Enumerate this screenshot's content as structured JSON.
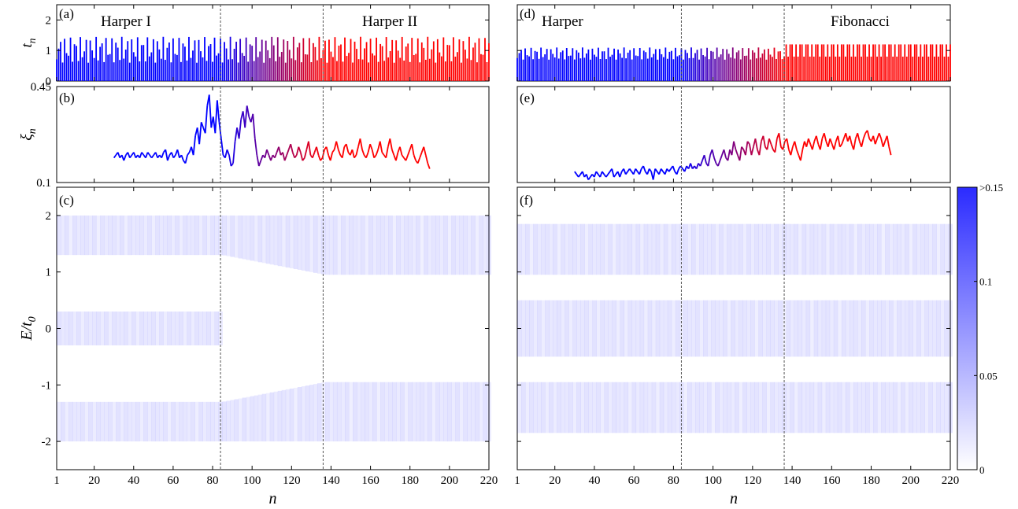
{
  "chart_data": [
    {
      "type": "bar",
      "panel": "(a)",
      "ylabel": "t_n",
      "ylim": [
        0,
        2.5
      ],
      "yticks": [
        0,
        1,
        2
      ],
      "annotations": [
        "Harper I",
        "Harper II"
      ],
      "transition_lines": [
        84,
        136
      ],
      "xlim": [
        1,
        220
      ],
      "series": [
        {
          "name": "",
          "color": "#0000ff",
          "description_values": "alternating hopping amplitudes between ~0.6 and ~1.45",
          "values_min": 0.6,
          "values_max": 1.45
        },
        {
          "name": "",
          "color": "#ff0000",
          "values_min": 0.6,
          "values_max": 1.45
        }
      ]
    },
    {
      "type": "line",
      "panel": "(b)",
      "ylabel": "ξ_n",
      "ylim": [
        0.1,
        0.45
      ],
      "yticks": [
        0.1,
        0.45
      ],
      "transition_lines": [
        84,
        136
      ],
      "xlim": [
        1,
        220
      ],
      "series": [
        {
          "name": "",
          "x_range": [
            30,
            190
          ],
          "values": [
            0.19,
            0.2,
            0.21,
            0.19,
            0.2,
            0.18,
            0.2,
            0.21,
            0.19,
            0.2,
            0.21,
            0.19,
            0.2,
            0.19,
            0.21,
            0.2,
            0.19,
            0.21,
            0.2,
            0.19,
            0.2,
            0.21,
            0.19,
            0.2,
            0.19,
            0.21,
            0.22,
            0.18,
            0.2,
            0.21,
            0.19,
            0.2,
            0.22,
            0.19,
            0.2,
            0.18,
            0.17,
            0.2,
            0.21,
            0.23,
            0.2,
            0.27,
            0.3,
            0.24,
            0.32,
            0.3,
            0.28,
            0.38,
            0.42,
            0.3,
            0.34,
            0.28,
            0.4,
            0.32,
            0.26,
            0.2,
            0.19,
            0.22,
            0.2,
            0.16,
            0.17,
            0.25,
            0.3,
            0.26,
            0.33,
            0.36,
            0.3,
            0.38,
            0.34,
            0.32,
            0.35,
            0.26,
            0.2,
            0.16,
            0.18,
            0.2,
            0.19,
            0.22,
            0.2,
            0.18,
            0.2,
            0.19,
            0.21,
            0.23,
            0.2,
            0.21,
            0.18,
            0.2,
            0.22,
            0.24,
            0.21,
            0.19,
            0.2,
            0.23,
            0.21,
            0.18,
            0.19,
            0.22,
            0.25,
            0.2,
            0.19,
            0.21,
            0.23,
            0.2,
            0.18,
            0.19,
            0.22,
            0.23,
            0.2,
            0.18,
            0.21,
            0.22,
            0.25,
            0.22,
            0.2,
            0.19,
            0.23,
            0.24,
            0.21,
            0.2,
            0.22,
            0.19,
            0.2,
            0.23,
            0.26,
            0.22,
            0.2,
            0.19,
            0.21,
            0.24,
            0.22,
            0.19,
            0.2,
            0.22,
            0.25,
            0.21,
            0.2,
            0.19,
            0.23,
            0.26,
            0.22,
            0.2,
            0.18,
            0.21,
            0.23,
            0.2,
            0.19,
            0.18,
            0.2,
            0.22,
            0.24,
            0.2,
            0.18,
            0.17,
            0.19,
            0.21,
            0.23,
            0.2,
            0.17,
            0.15
          ]
        }
      ]
    },
    {
      "type": "heatmap",
      "panel": "(c)",
      "xlabel": "n",
      "ylabel": "E/t_0",
      "ylim": [
        -2.5,
        2.5
      ],
      "yticks": [
        -2,
        -1,
        0,
        1,
        2
      ],
      "xticks": [
        1,
        20,
        40,
        60,
        80,
        100,
        120,
        140,
        160,
        180,
        200,
        220
      ],
      "transition_lines": [
        84,
        136
      ],
      "xlim": [
        1,
        220
      ],
      "bands_left": [
        [
          1.3,
          2.0
        ],
        [
          -0.3,
          0.3
        ],
        [
          -2.0,
          -1.3
        ]
      ],
      "bands_right": [
        [
          0.95,
          2.0
        ],
        [
          -2.0,
          -0.95
        ]
      ]
    },
    {
      "type": "bar",
      "panel": "(d)",
      "ylim": [
        0,
        2.5
      ],
      "annotations": [
        "Harper",
        "Fibonacci"
      ],
      "transition_lines": [
        84,
        136
      ],
      "xlim": [
        1,
        220
      ],
      "series": [
        {
          "name": "",
          "color": "#0000ff",
          "values_min": 0.7,
          "values_max": 1.1
        },
        {
          "name": "",
          "color": "#ff0000",
          "values": [
            0.8,
            1.2
          ]
        }
      ]
    },
    {
      "type": "line",
      "panel": "(e)",
      "ylim": [
        0.1,
        0.45
      ],
      "transition_lines": [
        84,
        136
      ],
      "xlim": [
        1,
        220
      ],
      "series": [
        {
          "name": "",
          "x_range": [
            30,
            190
          ],
          "values": [
            0.14,
            0.13,
            0.12,
            0.13,
            0.14,
            0.12,
            0.13,
            0.11,
            0.12,
            0.13,
            0.12,
            0.14,
            0.13,
            0.12,
            0.14,
            0.13,
            0.12,
            0.13,
            0.14,
            0.15,
            0.12,
            0.13,
            0.14,
            0.12,
            0.14,
            0.15,
            0.13,
            0.14,
            0.15,
            0.14,
            0.13,
            0.15,
            0.14,
            0.13,
            0.15,
            0.16,
            0.14,
            0.13,
            0.15,
            0.14,
            0.11,
            0.15,
            0.14,
            0.13,
            0.15,
            0.14,
            0.13,
            0.15,
            0.14,
            0.15,
            0.16,
            0.14,
            0.13,
            0.15,
            0.16,
            0.15,
            0.14,
            0.16,
            0.15,
            0.17,
            0.15,
            0.16,
            0.15,
            0.17,
            0.16,
            0.18,
            0.2,
            0.17,
            0.16,
            0.2,
            0.22,
            0.19,
            0.17,
            0.16,
            0.18,
            0.2,
            0.22,
            0.19,
            0.18,
            0.22,
            0.2,
            0.25,
            0.22,
            0.2,
            0.18,
            0.23,
            0.22,
            0.2,
            0.25,
            0.24,
            0.2,
            0.23,
            0.26,
            0.22,
            0.2,
            0.25,
            0.27,
            0.23,
            0.22,
            0.26,
            0.24,
            0.22,
            0.21,
            0.26,
            0.28,
            0.23,
            0.22,
            0.25,
            0.26,
            0.22,
            0.2,
            0.23,
            0.25,
            0.22,
            0.2,
            0.18,
            0.22,
            0.25,
            0.23,
            0.26,
            0.24,
            0.22,
            0.25,
            0.27,
            0.24,
            0.22,
            0.26,
            0.28,
            0.25,
            0.23,
            0.26,
            0.24,
            0.22,
            0.25,
            0.27,
            0.23,
            0.24,
            0.26,
            0.28,
            0.25,
            0.27,
            0.24,
            0.22,
            0.26,
            0.28,
            0.25,
            0.23,
            0.26,
            0.28,
            0.29,
            0.26,
            0.25,
            0.27,
            0.24,
            0.26,
            0.28,
            0.26,
            0.23,
            0.25,
            0.27,
            0.23,
            0.2
          ]
        }
      ]
    },
    {
      "type": "heatmap",
      "panel": "(f)",
      "xlabel": "n",
      "ylim": [
        -2.5,
        2.5
      ],
      "xticks": [
        1,
        20,
        40,
        60,
        80,
        100,
        120,
        140,
        160,
        180,
        200,
        220
      ],
      "transition_lines": [
        84,
        136
      ],
      "xlim": [
        1,
        220
      ],
      "bands": [
        [
          0.95,
          1.85
        ],
        [
          -0.5,
          0.5
        ],
        [
          -1.85,
          -0.95
        ]
      ],
      "colorbar": {
        "ticks": [
          "0",
          "0.05",
          "0.1",
          ">0.15"
        ],
        "range": [
          0,
          0.15
        ]
      }
    }
  ]
}
